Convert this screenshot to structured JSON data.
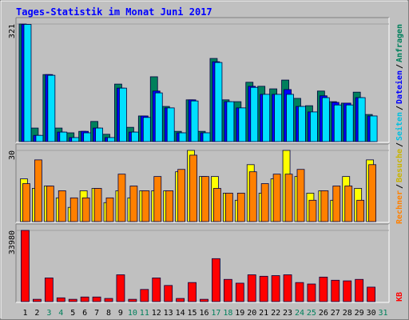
{
  "chart_data": [
    {
      "type": "bar",
      "title": "Tages-Statistik im Monat Juni 2017",
      "legend_separator": "/",
      "ylim": [
        0,
        321
      ],
      "yticks": [
        321
      ],
      "series": [
        {
          "name": "Anfragen",
          "color": "#00805c",
          "values": [
            321,
            37,
            183,
            37,
            24,
            28,
            55,
            20,
            157,
            39,
            70,
            177,
            96,
            28,
            114,
            28,
            227,
            114,
            109,
            162,
            151,
            144,
            168,
            118,
            98,
            138,
            109,
            105,
            135,
            74,
            null
          ]
        },
        {
          "name": "Dateien",
          "color": "#0000ff",
          "values": [
            320,
            17,
            183,
            26,
            11,
            28,
            37,
            11,
            146,
            26,
            70,
            138,
            92,
            24,
            114,
            24,
            218,
            109,
            92,
            151,
            129,
            129,
            142,
            96,
            81,
            125,
            107,
            105,
            120,
            70,
            null
          ]
        },
        {
          "name": "Seiten",
          "color": "#00e0ff",
          "values": [
            320,
            17,
            181,
            26,
            11,
            24,
            37,
            11,
            146,
            26,
            66,
            133,
            92,
            24,
            111,
            24,
            216,
            109,
            92,
            148,
            129,
            129,
            129,
            96,
            81,
            120,
            100,
            100,
            120,
            70,
            null
          ]
        }
      ]
    },
    {
      "type": "bar",
      "ylim": [
        0,
        30
      ],
      "yticks": [
        30
      ],
      "series": [
        {
          "name": "Besuche",
          "color": "#ffff00",
          "values": [
            18,
            14,
            15,
            10,
            6,
            13,
            14,
            8,
            13,
            10,
            13,
            13,
            13,
            21,
            30,
            19,
            19,
            12,
            9,
            24,
            12,
            18,
            30,
            19,
            12,
            13,
            9,
            19,
            14,
            26,
            null
          ]
        },
        {
          "name": "Rechner",
          "color": "#ff8000",
          "values": [
            16,
            26,
            15,
            13,
            10,
            10,
            14,
            10,
            20,
            15,
            13,
            19,
            13,
            22,
            28,
            19,
            14,
            12,
            12,
            21,
            16,
            20,
            20,
            22,
            9,
            13,
            15,
            15,
            9,
            24,
            null
          ]
        }
      ]
    },
    {
      "type": "bar",
      "ylim": [
        0,
        33980
      ],
      "yticks": [
        33980
      ],
      "categories": [
        "1",
        "2",
        "3",
        "4",
        "5",
        "6",
        "7",
        "8",
        "9",
        "10",
        "11",
        "12",
        "13",
        "14",
        "15",
        "16",
        "17",
        "18",
        "19",
        "20",
        "21",
        "22",
        "23",
        "24",
        "25",
        "26",
        "27",
        "28",
        "29",
        "30",
        "31"
      ],
      "category_colors": [
        "#000000",
        "#000000",
        "#00805c",
        "#00805c",
        "#000000",
        "#000000",
        "#000000",
        "#000000",
        "#000000",
        "#00805c",
        "#00805c",
        "#000000",
        "#000000",
        "#000000",
        "#000000",
        "#000000",
        "#00805c",
        "#00805c",
        "#000000",
        "#000000",
        "#000000",
        "#000000",
        "#000000",
        "#00805c",
        "#00805c",
        "#000000",
        "#000000",
        "#000000",
        "#000000",
        "#000000",
        "#00805c"
      ],
      "series": [
        {
          "name": "KB",
          "color": "#ff0000",
          "values": [
            33980,
            1100,
            11300,
            1800,
            1100,
            2200,
            2200,
            1500,
            12800,
            1100,
            5800,
            11300,
            7700,
            1500,
            9100,
            1100,
            20500,
            10600,
            8800,
            12800,
            12100,
            12400,
            12800,
            9100,
            8400,
            11700,
            10200,
            9900,
            10600,
            6900,
            null
          ]
        }
      ]
    }
  ]
}
